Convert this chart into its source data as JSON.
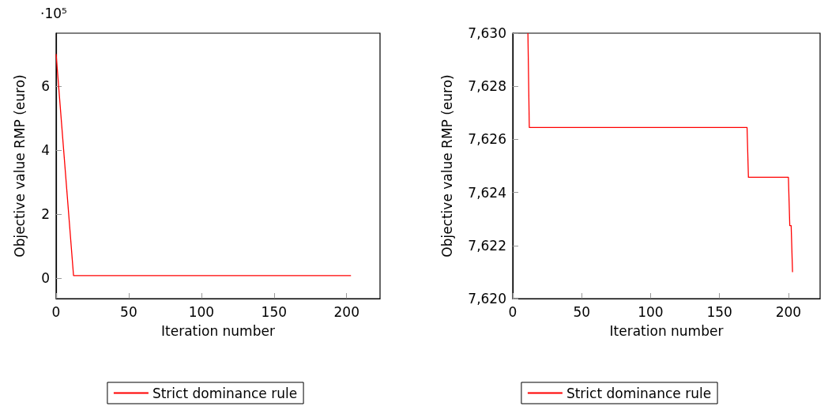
{
  "chart_data": [
    {
      "type": "line",
      "xlabel": "Iteration number",
      "ylabel": "Objective value RMP (euro)",
      "annotations": [
        "·10⁵"
      ],
      "series": [
        {
          "name": "Strict dominance rule",
          "color": "#ff0000",
          "x": [
            0,
            12,
            203
          ],
          "values": [
            7,
            0.08,
            0.08
          ]
        }
      ],
      "xlim": [
        0,
        223
      ],
      "xticks": [
        0,
        50,
        100,
        150,
        200
      ],
      "ylim": [
        -0.64,
        7.65
      ],
      "yticks": [
        0,
        2,
        4,
        6
      ],
      "legend": "bottom",
      "marker": "none",
      "line_style": "solid"
    },
    {
      "type": "line",
      "xlabel": "Iteration number",
      "ylabel": "Objective value RMP (euro)",
      "series": [
        {
          "name": "Strict dominance rule",
          "color": "#ff0000",
          "x": [
            11,
            12,
            170,
            171,
            200,
            201,
            202,
            203
          ],
          "values": [
            7630,
            7626.45,
            7626.45,
            7624.57,
            7624.57,
            7622.75,
            7622.75,
            7621.0
          ]
        }
      ],
      "xlim": [
        0,
        223
      ],
      "xticks": [
        0,
        50,
        100,
        150,
        200
      ],
      "ylim": [
        7620,
        7630
      ],
      "yticks": [
        {
          "value": 7620,
          "label": "7,620"
        },
        {
          "value": 7622,
          "label": "7,622"
        },
        {
          "value": 7624,
          "label": "7,624"
        },
        {
          "value": 7626,
          "label": "7,626"
        },
        {
          "value": 7628,
          "label": "7,628"
        },
        {
          "value": 7630,
          "label": "7,630"
        }
      ],
      "legend": "bottom",
      "marker": "none",
      "line_style": "solid"
    }
  ]
}
